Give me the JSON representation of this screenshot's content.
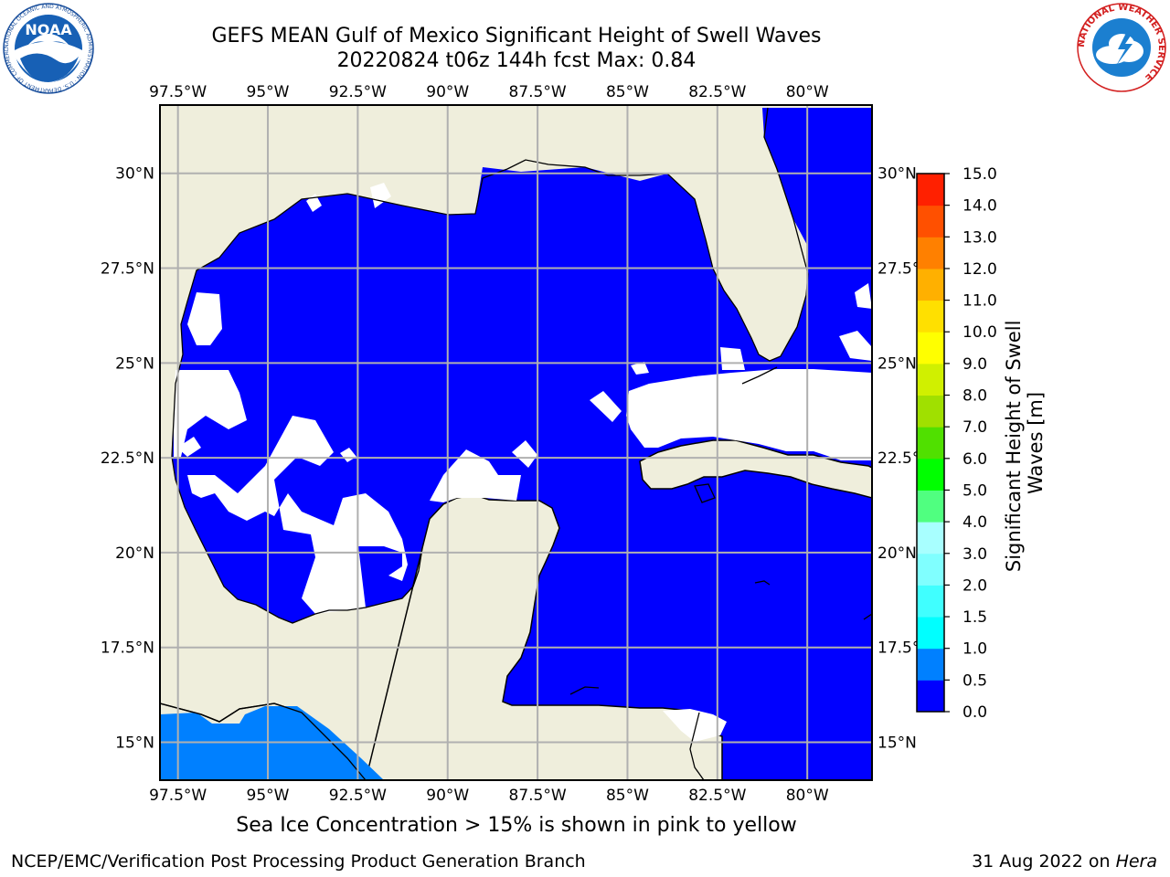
{
  "header": {
    "title_line1": "GEFS MEAN Gulf of Mexico Significant Height of Swell Waves",
    "title_line2": "20220824 t06z 144h fcst   Max: 0.84"
  },
  "map": {
    "lon_ticks": [
      "97.5°W",
      "95°W",
      "92.5°W",
      "90°W",
      "87.5°W",
      "85°W",
      "82.5°W",
      "80°W"
    ],
    "lat_ticks": [
      "30°N",
      "27.5°N",
      "25°N",
      "22.5°N",
      "20°N",
      "17.5°N",
      "15°N"
    ],
    "extent": {
      "lon": [
        -98,
        -78.2
      ],
      "lat": [
        14,
        31.8
      ]
    },
    "colors": {
      "land": "#efeedc",
      "water": "#0000ff",
      "shallow": "#0080ff",
      "grid": "#b0b0b0"
    }
  },
  "colorbar": {
    "label_line1": "Significant Height of Swell",
    "label_line2": "Waves [m]",
    "levels": [
      "0.0",
      "0.5",
      "1.0",
      "1.5",
      "2.0",
      "3.0",
      "4.0",
      "5.0",
      "6.0",
      "7.0",
      "8.0",
      "9.0",
      "10.0",
      "11.0",
      "12.0",
      "13.0",
      "14.0",
      "15.0"
    ],
    "colors": [
      "#0000ff",
      "#0080ff",
      "#00ffff",
      "#40ffff",
      "#80ffff",
      "#a8ffff",
      "#50ff80",
      "#00ff00",
      "#50e000",
      "#a0e000",
      "#d0f000",
      "#ffff00",
      "#ffe000",
      "#ffb000",
      "#ff8000",
      "#ff5000",
      "#ff2000"
    ]
  },
  "footer": {
    "subnote": "Sea Ice Concentration > 15% is shown in pink to yellow",
    "credit_left": "NCEP/EMC/Verification Post Processing Product Generation Branch",
    "credit_right_prefix": "31 Aug 2022 on ",
    "credit_right_host": "Hera"
  },
  "logos": {
    "left": {
      "icon": "noaa-logo",
      "text": "NOAA",
      "ring_text": "NATIONAL OCEANIC AND ATMOSPHERIC ADMINISTRATION · U.S. DEPARTMENT OF COMMERCE"
    },
    "right": {
      "icon": "nws-logo",
      "ring_text": "NATIONAL WEATHER SERVICE"
    }
  }
}
